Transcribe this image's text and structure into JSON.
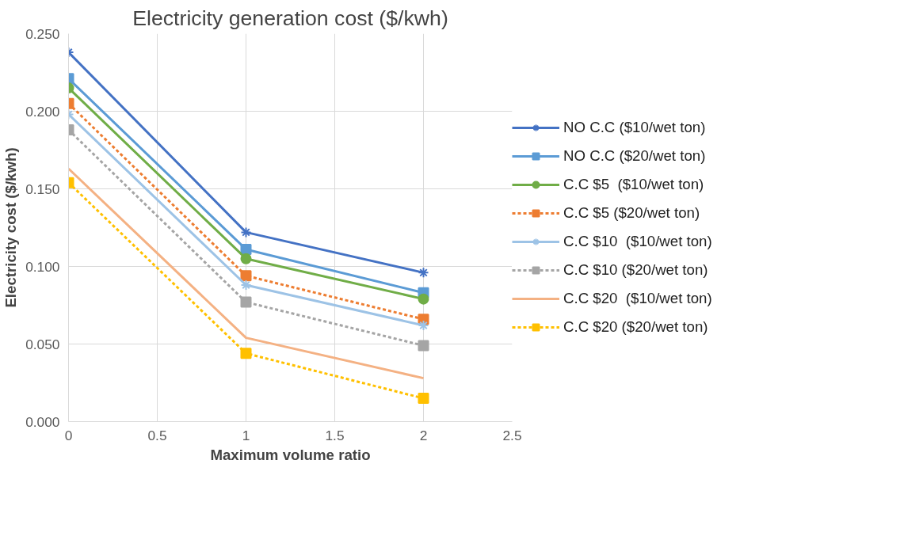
{
  "chart_data": {
    "type": "line",
    "title": "Electricity generation cost ($/kwh)",
    "xlabel": "Maximum volume ratio",
    "ylabel": "Electricity cost ($/kwh)",
    "x": [
      0,
      1,
      2
    ],
    "xlim": [
      0,
      2.5
    ],
    "xticks": [
      0,
      0.5,
      1,
      1.5,
      2,
      2.5
    ],
    "ylim": [
      0,
      0.25
    ],
    "yticks": [
      {
        "value": 0,
        "label": "0.000"
      },
      {
        "value": 0.05,
        "label": "0.050"
      },
      {
        "value": 0.1,
        "label": "0.100"
      },
      {
        "value": 0.15,
        "label": "0.150"
      },
      {
        "value": 0.2,
        "label": "0.200"
      },
      {
        "value": 0.25,
        "label": "0.250"
      }
    ],
    "grid": true,
    "legend": "right",
    "series": [
      {
        "name": "NO C.C ($10/wet ton)",
        "color": "#4472c4",
        "marker": "cross",
        "line_style": "solid",
        "values": [
          0.238,
          0.122,
          0.096
        ]
      },
      {
        "name": "NO C.C ($20/wet ton)",
        "color": "#5b9bd5",
        "marker": "square",
        "line_style": "solid",
        "values": [
          0.221,
          0.111,
          0.083
        ]
      },
      {
        "name": "C.C $5  ($10/wet ton)",
        "color": "#70ad47",
        "marker": "circle",
        "line_style": "solid",
        "values": [
          0.215,
          0.105,
          0.079
        ]
      },
      {
        "name": "C.C $5 ($20/wet ton)",
        "color": "#ed7d31",
        "marker": "square",
        "line_style": "dashed",
        "values": [
          0.205,
          0.094,
          0.066
        ]
      },
      {
        "name": "C.C $10  ($10/wet ton)",
        "color": "#9dc3e6",
        "marker": "cross",
        "line_style": "solid",
        "values": [
          0.198,
          0.088,
          0.062
        ]
      },
      {
        "name": "C.C $10 ($20/wet ton)",
        "color": "#a5a5a5",
        "marker": "square",
        "line_style": "dashed",
        "values": [
          0.188,
          0.077,
          0.049
        ]
      },
      {
        "name": "C.C $20  ($10/wet ton)",
        "color": "#f4b183",
        "marker": "none",
        "line_style": "solid",
        "values": [
          0.163,
          0.054,
          0.028
        ]
      },
      {
        "name": "C.C $20 ($20/wet ton)",
        "color": "#ffc000",
        "marker": "square",
        "line_style": "dashed",
        "values": [
          0.154,
          0.044,
          0.015
        ]
      }
    ]
  }
}
